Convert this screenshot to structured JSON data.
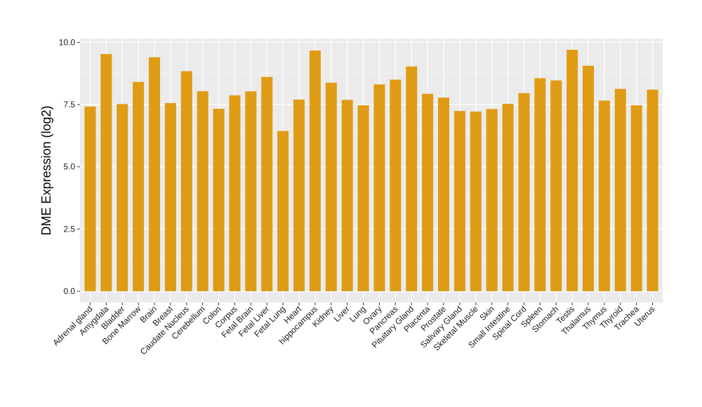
{
  "chart_data": {
    "type": "bar",
    "title": "",
    "xlabel": "",
    "ylabel": "DME Expression (log2)",
    "ylim": [
      -0.45,
      10.15
    ],
    "yticks": [
      0.0,
      2.5,
      5.0,
      7.5,
      10.0
    ],
    "ytick_labels": [
      "0.0",
      "2.5",
      "5.0",
      "7.5",
      "10.0"
    ],
    "grid": true,
    "legend": "none",
    "bar_color": "#E09B15",
    "panel_color": "#EBEBEB",
    "categories": [
      "Adrenal gland",
      "Amygdala",
      "Bladder",
      "Bone Marrow",
      "Brain",
      "Breast",
      "Caudate Nucleus",
      "Cerebellum",
      "Colon",
      "Corpus",
      "Fetal Brain",
      "Fetal Liver",
      "Fetal Lung",
      "Heart",
      "hippocampus",
      "Kidney",
      "Liver",
      "Lung",
      "Ovary",
      "Pancreas",
      "Pituitary Gland",
      "Placenta",
      "Prostate",
      "Salivary Gland",
      "Skeletal Muscle",
      "Skin",
      "Small Intestine",
      "Spinal Cord",
      "Spleen",
      "Stomach",
      "Testis",
      "Thalamus",
      "Thymus",
      "Thyroid",
      "Trachea",
      "Uterus"
    ],
    "values": [
      7.42,
      9.53,
      7.52,
      8.41,
      9.4,
      7.56,
      8.84,
      8.04,
      7.33,
      7.87,
      8.03,
      8.61,
      6.44,
      7.7,
      9.67,
      8.38,
      7.69,
      7.47,
      8.31,
      8.5,
      9.03,
      7.93,
      7.78,
      7.24,
      7.22,
      7.32,
      7.53,
      7.96,
      8.56,
      8.47,
      9.7,
      9.06,
      7.66,
      8.13,
      7.47,
      8.1
    ]
  }
}
